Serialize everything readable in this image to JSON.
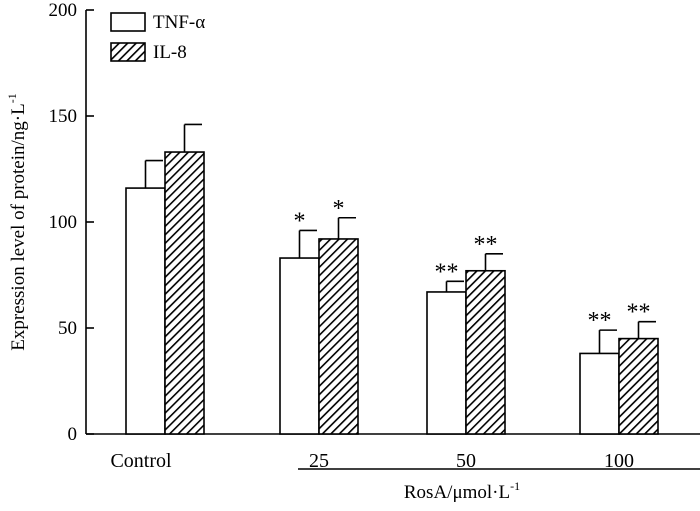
{
  "chart_data": {
    "type": "bar",
    "title": "",
    "ylabel": "Expression level of protein/ng·L",
    "ylabel_superscript": "-1",
    "xlabel": "RosA/μmol·L",
    "xlabel_superscript": "-1",
    "ylim": [
      0,
      200
    ],
    "yticks": [
      "0",
      "50",
      "100",
      "150",
      "200"
    ],
    "categories": [
      "Control",
      "25",
      "50",
      "100"
    ],
    "legend_position": "top-left",
    "series": [
      {
        "name": "TNF-α",
        "style": "open",
        "values": [
          116,
          83,
          67,
          38
        ],
        "errors": [
          13,
          13,
          5,
          11
        ],
        "significance": [
          "",
          "*",
          "**",
          "**"
        ]
      },
      {
        "name": "IL-8",
        "style": "hatched",
        "values": [
          133,
          92,
          77,
          45
        ],
        "errors": [
          13,
          10,
          8,
          8
        ],
        "significance": [
          "",
          "*",
          "**",
          "**"
        ]
      }
    ]
  }
}
